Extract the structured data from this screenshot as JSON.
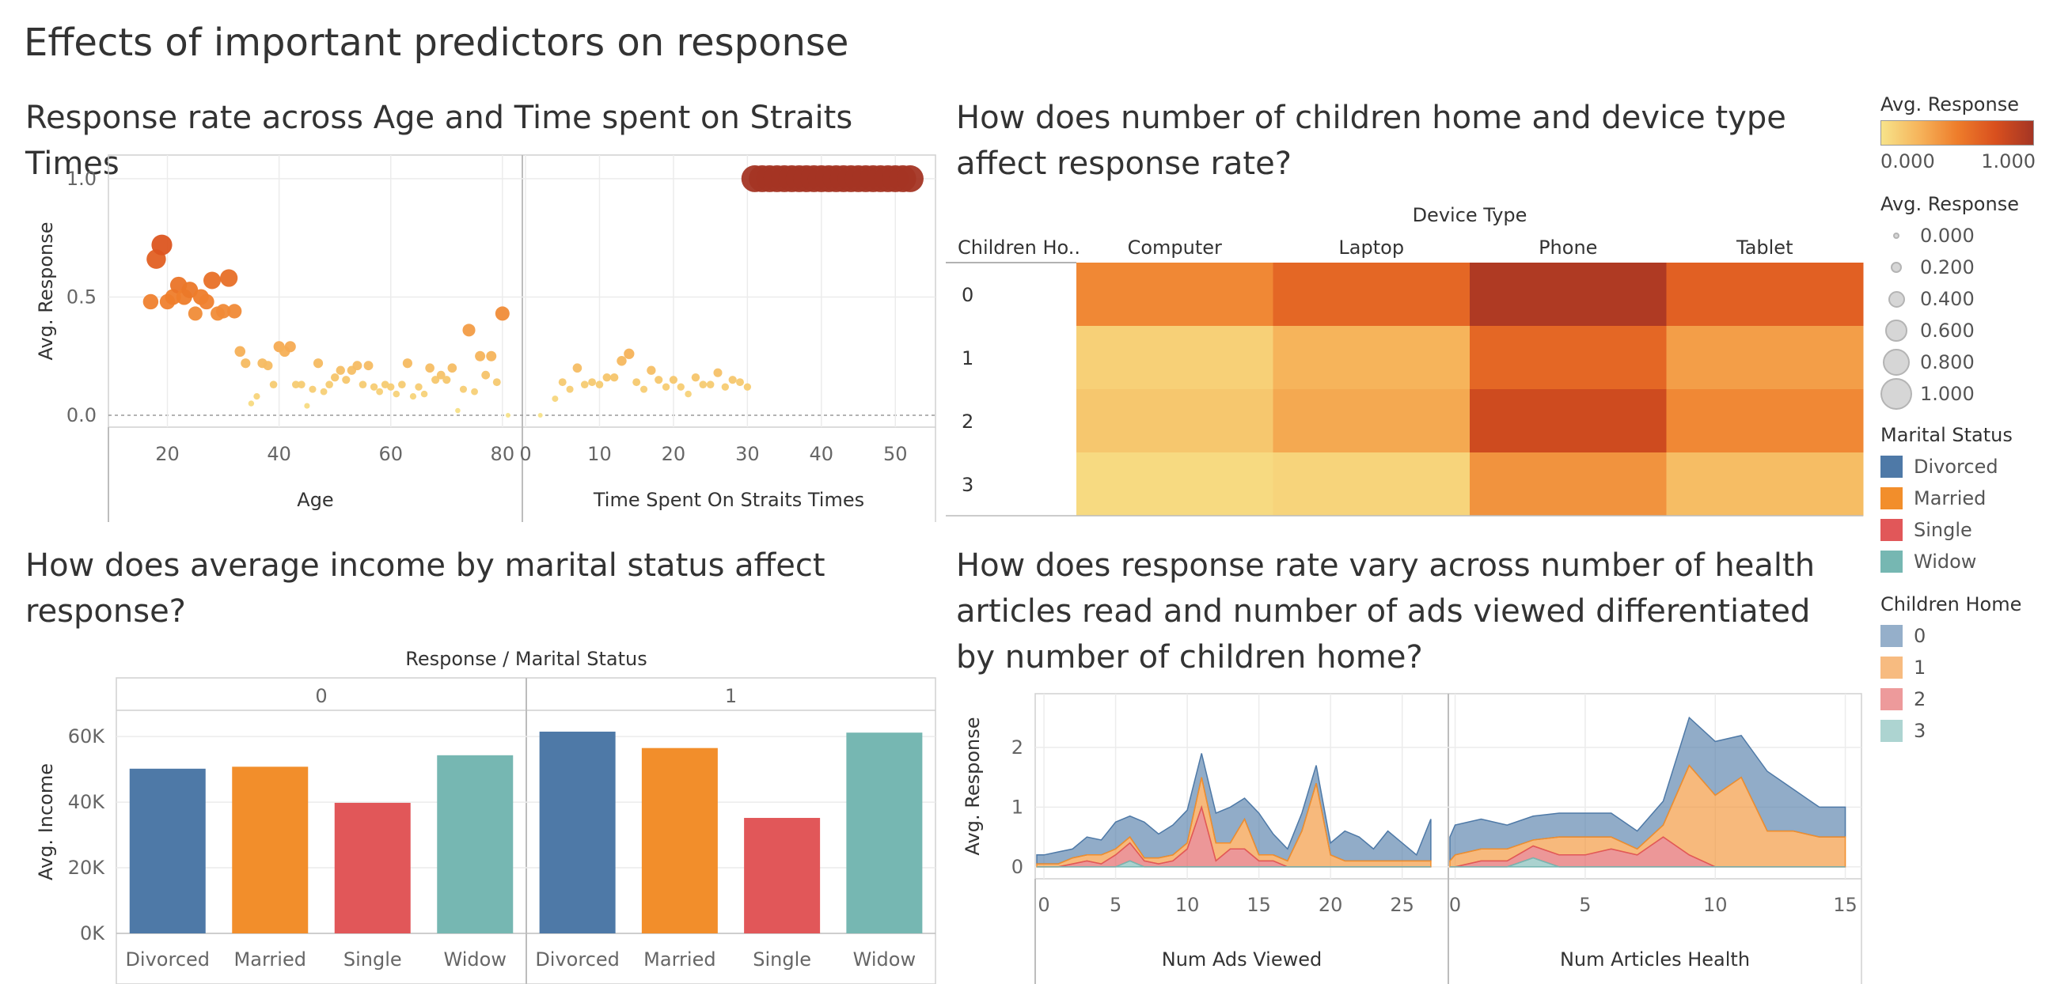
{
  "dashboard": {
    "title": "Effects of important predictors on response"
  },
  "chart_data": [
    {
      "id": "age_time",
      "type": "scatter",
      "title": "Response rate across Age and Time spent on Straits Times",
      "ylabel": "Avg. Response",
      "ylim": [
        -0.05,
        1.1
      ],
      "yticks": [
        0.0,
        0.5,
        1.0
      ],
      "yticklabels": [
        "0.0",
        "0.5",
        "1.0"
      ],
      "panels": [
        {
          "xlabel": "Age",
          "xlim": [
            10,
            83
          ],
          "xticks": [
            20,
            40,
            60,
            80
          ],
          "points": [
            [
              17,
              0.48
            ],
            [
              18,
              0.66
            ],
            [
              19,
              0.72
            ],
            [
              20,
              0.48
            ],
            [
              21,
              0.5
            ],
            [
              22,
              0.55
            ],
            [
              23,
              0.5
            ],
            [
              24,
              0.53
            ],
            [
              25,
              0.43
            ],
            [
              26,
              0.5
            ],
            [
              27,
              0.48
            ],
            [
              28,
              0.57
            ],
            [
              29,
              0.43
            ],
            [
              30,
              0.44
            ],
            [
              31,
              0.58
            ],
            [
              32,
              0.44
            ],
            [
              33,
              0.27
            ],
            [
              34,
              0.22
            ],
            [
              35,
              0.05
            ],
            [
              36,
              0.08
            ],
            [
              37,
              0.22
            ],
            [
              38,
              0.21
            ],
            [
              39,
              0.13
            ],
            [
              40,
              0.29
            ],
            [
              41,
              0.27
            ],
            [
              42,
              0.29
            ],
            [
              43,
              0.13
            ],
            [
              44,
              0.13
            ],
            [
              45,
              0.04
            ],
            [
              46,
              0.11
            ],
            [
              47,
              0.22
            ],
            [
              48,
              0.1
            ],
            [
              49,
              0.13
            ],
            [
              50,
              0.16
            ],
            [
              51,
              0.19
            ],
            [
              52,
              0.15
            ],
            [
              53,
              0.19
            ],
            [
              54,
              0.21
            ],
            [
              55,
              0.13
            ],
            [
              56,
              0.21
            ],
            [
              57,
              0.12
            ],
            [
              58,
              0.1
            ],
            [
              59,
              0.13
            ],
            [
              60,
              0.12
            ],
            [
              61,
              0.09
            ],
            [
              62,
              0.13
            ],
            [
              63,
              0.22
            ],
            [
              64,
              0.08
            ],
            [
              65,
              0.12
            ],
            [
              66,
              0.09
            ],
            [
              67,
              0.2
            ],
            [
              68,
              0.15
            ],
            [
              69,
              0.17
            ],
            [
              70,
              0.15
            ],
            [
              71,
              0.2
            ],
            [
              72,
              0.02
            ],
            [
              73,
              0.11
            ],
            [
              74,
              0.36
            ],
            [
              75,
              0.1
            ],
            [
              76,
              0.25
            ],
            [
              77,
              0.17
            ],
            [
              78,
              0.25
            ],
            [
              79,
              0.14
            ],
            [
              80,
              0.43
            ],
            [
              81,
              0.0
            ]
          ]
        },
        {
          "xlabel": "Time Spent On Straits Times",
          "xlim": [
            0,
            55
          ],
          "xticks": [
            0,
            10,
            20,
            30,
            40,
            50
          ],
          "points": [
            [
              2,
              0.0
            ],
            [
              4,
              0.07
            ],
            [
              5,
              0.14
            ],
            [
              6,
              0.11
            ],
            [
              7,
              0.2
            ],
            [
              8,
              0.13
            ],
            [
              9,
              0.14
            ],
            [
              10,
              0.13
            ],
            [
              11,
              0.16
            ],
            [
              12,
              0.16
            ],
            [
              13,
              0.23
            ],
            [
              14,
              0.26
            ],
            [
              15,
              0.14
            ],
            [
              16,
              0.11
            ],
            [
              17,
              0.19
            ],
            [
              18,
              0.15
            ],
            [
              19,
              0.12
            ],
            [
              20,
              0.15
            ],
            [
              21,
              0.12
            ],
            [
              22,
              0.09
            ],
            [
              23,
              0.16
            ],
            [
              24,
              0.13
            ],
            [
              25,
              0.13
            ],
            [
              26,
              0.18
            ],
            [
              27,
              0.12
            ],
            [
              28,
              0.15
            ],
            [
              29,
              0.14
            ],
            [
              30,
              0.12
            ],
            [
              31,
              1.0
            ],
            [
              32,
              1.0
            ],
            [
              33,
              1.0
            ],
            [
              34,
              1.0
            ],
            [
              35,
              1.0
            ],
            [
              36,
              1.0
            ],
            [
              37,
              1.0
            ],
            [
              38,
              1.0
            ],
            [
              39,
              1.0
            ],
            [
              40,
              1.0
            ],
            [
              41,
              1.0
            ],
            [
              42,
              1.0
            ],
            [
              43,
              1.0
            ],
            [
              44,
              1.0
            ],
            [
              45,
              1.0
            ],
            [
              46,
              1.0
            ],
            [
              47,
              1.0
            ],
            [
              48,
              1.0
            ],
            [
              49,
              1.0
            ],
            [
              50,
              1.0
            ],
            [
              51,
              1.0
            ],
            [
              52,
              1.0
            ]
          ]
        }
      ]
    },
    {
      "id": "children_device",
      "type": "heatmap",
      "title": "How does number of children home and device type affect response rate?",
      "column_group_label": "Device Type",
      "row_header": "Children Ho..",
      "columns": [
        "Computer",
        "Laptop",
        "Phone",
        "Tablet"
      ],
      "rows": [
        "0",
        "1",
        "2",
        "3"
      ],
      "values": [
        [
          0.45,
          0.62,
          0.95,
          0.66
        ],
        [
          0.1,
          0.25,
          0.62,
          0.35
        ],
        [
          0.15,
          0.3,
          0.8,
          0.45
        ],
        [
          0.05,
          0.08,
          0.4,
          0.2
        ]
      ]
    },
    {
      "id": "income_marital",
      "type": "bar",
      "title": "How does average income by marital status affect response?",
      "group_header": "Response / Marital Status",
      "ylabel": "Avg. Income",
      "ylim": [
        0,
        68000
      ],
      "yticks": [
        0,
        20000,
        40000,
        60000
      ],
      "yticklabels": [
        "0K",
        "20K",
        "40K",
        "60K"
      ],
      "categories": [
        "Divorced",
        "Married",
        "Single",
        "Widow"
      ],
      "groups": [
        {
          "name": "0",
          "values": [
            50200,
            50800,
            39800,
            54300
          ]
        },
        {
          "name": "1",
          "values": [
            61500,
            56500,
            35200,
            61200
          ]
        }
      ]
    },
    {
      "id": "health_ads",
      "type": "area",
      "title": "How does response rate vary across number of health articles read and number of ads viewed differentiated by number of children home?",
      "ylabel": "Avg. Response",
      "ylim": [
        -0.2,
        2.9
      ],
      "yticks": [
        0,
        1,
        2
      ],
      "series_names": [
        "0",
        "1",
        "2",
        "3"
      ],
      "panels": [
        {
          "xlabel": "Num Ads Viewed",
          "xlim": [
            -0.5,
            28
          ],
          "xticks": [
            0,
            5,
            10,
            15,
            20,
            25
          ],
          "x": [
            -0.5,
            0,
            1,
            2,
            3,
            4,
            5,
            6,
            7,
            8,
            9,
            10,
            11,
            12,
            13,
            14,
            15,
            16,
            17,
            18,
            19,
            20,
            21,
            22,
            23,
            24,
            25,
            26,
            27
          ],
          "series": [
            {
              "name": "0",
              "values": [
                0.15,
                0.15,
                0.2,
                0.15,
                0.3,
                0.25,
                0.45,
                0.35,
                0.6,
                0.4,
                0.5,
                0.55,
                0.4,
                0.5,
                0.6,
                0.35,
                0.7,
                0.35,
                0.2,
                0.3,
                0.3,
                0.2,
                0.5,
                0.4,
                0.2,
                0.5,
                0.3,
                0.1,
                0.7
              ]
            },
            {
              "name": "1",
              "values": [
                0.05,
                0.05,
                0.05,
                0.1,
                0.1,
                0.15,
                0.1,
                0.1,
                0.05,
                0.1,
                0.1,
                0.1,
                0.5,
                0.3,
                0.1,
                0.5,
                0.1,
                0.1,
                0.1,
                0.6,
                1.4,
                0.2,
                0.1,
                0.1,
                0.1,
                0.1,
                0.1,
                0.1,
                0.1
              ]
            },
            {
              "name": "2",
              "values": [
                0.0,
                0.0,
                0.0,
                0.05,
                0.1,
                0.05,
                0.2,
                0.3,
                0.1,
                0.05,
                0.1,
                0.3,
                1.0,
                0.1,
                0.3,
                0.3,
                0.1,
                0.1,
                0.0,
                0.0,
                0.0,
                0.0,
                0.0,
                0.0,
                0.0,
                0.0,
                0.0,
                0.0,
                0.0
              ]
            },
            {
              "name": "3",
              "values": [
                0.0,
                0.0,
                0.0,
                0.0,
                0.0,
                0.0,
                0.0,
                0.1,
                0.0,
                0.0,
                0.0,
                0.0,
                0.0,
                0.0,
                0.0,
                0.0,
                0.0,
                0.0,
                0.0,
                0.0,
                0.0,
                0.0,
                0.0,
                0.0,
                0.0,
                0.0,
                0.0,
                0.0,
                0.0
              ]
            }
          ]
        },
        {
          "xlabel": "Num Articles Health",
          "xlim": [
            -0.2,
            15.5
          ],
          "xticks": [
            0,
            5,
            10,
            15
          ],
          "x": [
            -0.2,
            0,
            1,
            2,
            3,
            4,
            5,
            6,
            7,
            8,
            9,
            10,
            11,
            12,
            13,
            14,
            15
          ],
          "series": [
            {
              "name": "0",
              "values": [
                0.4,
                0.5,
                0.5,
                0.4,
                0.4,
                0.4,
                0.4,
                0.4,
                0.3,
                0.4,
                0.8,
                0.9,
                0.7,
                1.0,
                0.7,
                0.5,
                0.5
              ]
            },
            {
              "name": "1",
              "values": [
                0.1,
                0.2,
                0.2,
                0.2,
                0.1,
                0.3,
                0.3,
                0.2,
                0.1,
                0.2,
                1.5,
                1.2,
                1.5,
                0.6,
                0.6,
                0.5,
                0.5
              ]
            },
            {
              "name": "2",
              "values": [
                0.0,
                0.0,
                0.1,
                0.1,
                0.2,
                0.2,
                0.2,
                0.3,
                0.2,
                0.5,
                0.2,
                0.0,
                0.0,
                0.0,
                0.0,
                0.0,
                0.0
              ]
            },
            {
              "name": "3",
              "values": [
                0.0,
                0.0,
                0.0,
                0.0,
                0.15,
                0.0,
                0.0,
                0.0,
                0.0,
                0.0,
                0.0,
                0.0,
                0.0,
                0.0,
                0.0,
                0.0,
                0.0
              ]
            }
          ]
        }
      ]
    }
  ],
  "legends": {
    "color_ramp": {
      "title": "Avg. Response",
      "min_label": "0.000",
      "max_label": "1.000"
    },
    "size": {
      "title": "Avg. Response",
      "labels": [
        "0.000",
        "0.200",
        "0.400",
        "0.600",
        "0.800",
        "1.000"
      ]
    },
    "marital": {
      "title": "Marital Status",
      "items": [
        {
          "label": "Divorced",
          "color": "#4e79a7"
        },
        {
          "label": "Married",
          "color": "#f28e2b"
        },
        {
          "label": "Single",
          "color": "#e15759"
        },
        {
          "label": "Widow",
          "color": "#76b7b2"
        }
      ]
    },
    "children": {
      "title": "Children Home",
      "items": [
        {
          "label": "0",
          "color": "#4e79a7"
        },
        {
          "label": "1",
          "color": "#f28e2b"
        },
        {
          "label": "2",
          "color": "#e15759"
        },
        {
          "label": "3",
          "color": "#76b7b2"
        }
      ]
    }
  }
}
